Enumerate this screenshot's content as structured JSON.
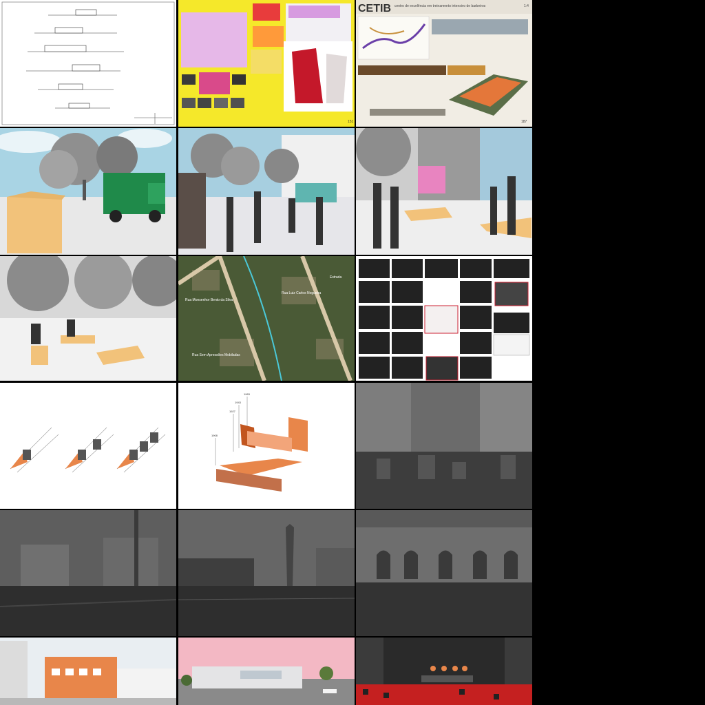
{
  "gallery": {
    "tiles": [
      {
        "name": "elevation-sheet",
        "caption": ""
      },
      {
        "name": "yellow-poster",
        "caption": "151"
      },
      {
        "name": "cetib-poster",
        "title": "CETIB",
        "subtitle": "centro de excelência em treinamento intensivo de barbeiros",
        "sheet": "1:4",
        "page": "187"
      },
      {
        "name": "render-garbage-truck"
      },
      {
        "name": "render-street-performers"
      },
      {
        "name": "render-plaza-people"
      },
      {
        "name": "render-benches"
      },
      {
        "name": "aerial-map",
        "labels": [
          "Rua Monsenhor Bento da Silva",
          "Rua Luiz Carlos Nogueira",
          "Rua Sem Apressões Mobiladas",
          "Estrada"
        ]
      },
      {
        "name": "historic-photo-collage"
      },
      {
        "name": "camera-diagram"
      },
      {
        "name": "timeline-diagram",
        "years": [
          "1908",
          "1927",
          "1943",
          "1963",
          "2017"
        ]
      },
      {
        "name": "photo-overlay-street"
      },
      {
        "name": "photo-overlay-church"
      },
      {
        "name": "photo-overlay-obelisk"
      },
      {
        "name": "photo-overlay-building"
      },
      {
        "name": "render-facade-orange"
      },
      {
        "name": "render-pink-sky"
      },
      {
        "name": "render-theater-stage"
      }
    ]
  },
  "colors": {
    "orange": "#e8864a",
    "yellow": "#f5e82a",
    "sand": "#f2c27a",
    "sky": "#9fcde0"
  }
}
